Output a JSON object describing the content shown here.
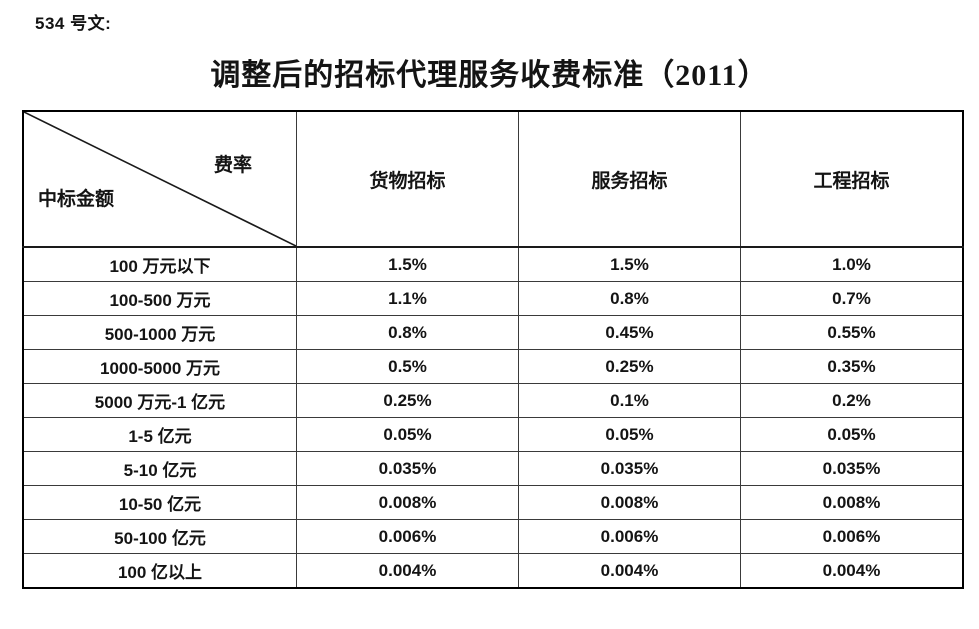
{
  "doc_label": "534 号文:",
  "title": "调整后的招标代理服务收费标准（2011）",
  "table": {
    "corner": {
      "top_right": "费率",
      "bottom_left": "中标金额"
    },
    "columns": [
      "货物招标",
      "服务招标",
      "工程招标"
    ],
    "rows": [
      {
        "label": "100 万元以下",
        "values": [
          "1.5%",
          "1.5%",
          "1.0%"
        ]
      },
      {
        "label": "100-500 万元",
        "values": [
          "1.1%",
          "0.8%",
          "0.7%"
        ]
      },
      {
        "label": "500-1000 万元",
        "values": [
          "0.8%",
          "0.45%",
          "0.55%"
        ]
      },
      {
        "label": "1000-5000 万元",
        "values": [
          "0.5%",
          "0.25%",
          "0.35%"
        ]
      },
      {
        "label": "5000 万元-1 亿元",
        "values": [
          "0.25%",
          "0.1%",
          "0.2%"
        ]
      },
      {
        "label": "1-5 亿元",
        "values": [
          "0.05%",
          "0.05%",
          "0.05%"
        ]
      },
      {
        "label": "5-10 亿元",
        "values": [
          "0.035%",
          "0.035%",
          "0.035%"
        ]
      },
      {
        "label": "10-50 亿元",
        "values": [
          "0.008%",
          "0.008%",
          "0.008%"
        ]
      },
      {
        "label": "50-100 亿元",
        "values": [
          "0.006%",
          "0.006%",
          "0.006%"
        ]
      },
      {
        "label": "100 亿以上",
        "values": [
          "0.004%",
          "0.004%",
          "0.004%"
        ]
      }
    ]
  },
  "colors": {
    "text": "#141414",
    "border_outer": "#000000",
    "border_inner": "#3a3a3a",
    "background": "#ffffff"
  }
}
